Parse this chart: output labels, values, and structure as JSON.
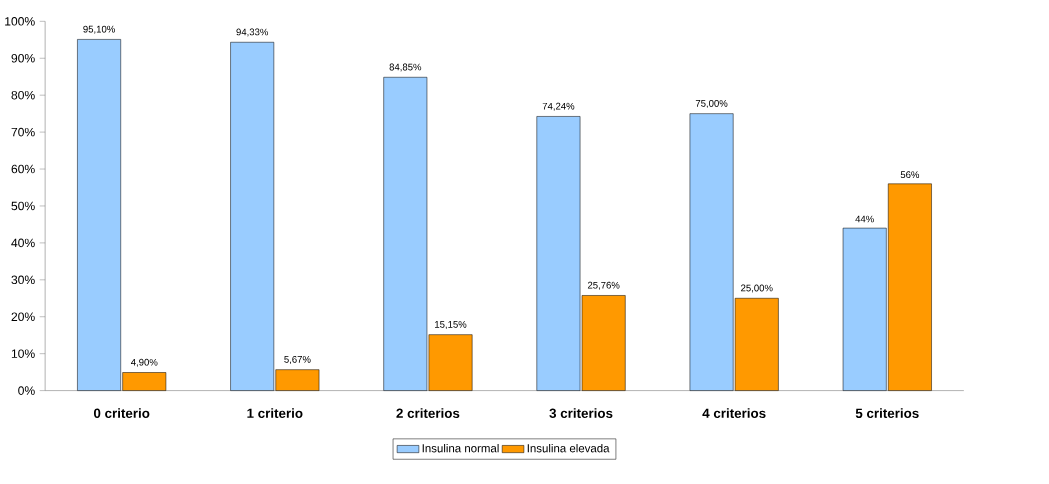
{
  "chart_data": {
    "type": "bar",
    "categories": [
      "0 criterio",
      "1 criterio",
      "2 criterios",
      "3 criterios",
      "4 criterios",
      "5 criterios"
    ],
    "series": [
      {
        "name": "Insulina normal",
        "color": "#99ccff",
        "values": [
          95.1,
          94.33,
          84.85,
          74.24,
          75.0,
          44
        ],
        "value_labels": [
          "95,10%",
          "94,33%",
          "84,85%",
          "74,24%",
          "75,00%",
          "44%"
        ]
      },
      {
        "name": "Insulina elevada",
        "color": "#ff9900",
        "values": [
          4.9,
          5.67,
          15.15,
          25.76,
          25.0,
          56
        ],
        "value_labels": [
          "4,90%",
          "5,67%",
          "15,15%",
          "25,76%",
          "25,00%",
          "56%"
        ]
      }
    ],
    "ylim": [
      0,
      100
    ],
    "yticks": [
      {
        "value": 0,
        "label": "0%"
      },
      {
        "value": 10,
        "label": "10%"
      },
      {
        "value": 20,
        "label": "20%"
      },
      {
        "value": 30,
        "label": "30%"
      },
      {
        "value": 40,
        "label": "40%"
      },
      {
        "value": 50,
        "label": "50%"
      },
      {
        "value": 60,
        "label": "60%"
      },
      {
        "value": 70,
        "label": "70%"
      },
      {
        "value": 80,
        "label": "80%"
      },
      {
        "value": 90,
        "label": "90%"
      },
      {
        "value": 100,
        "label": "100%"
      }
    ],
    "grid": false,
    "legend": "bottom"
  }
}
